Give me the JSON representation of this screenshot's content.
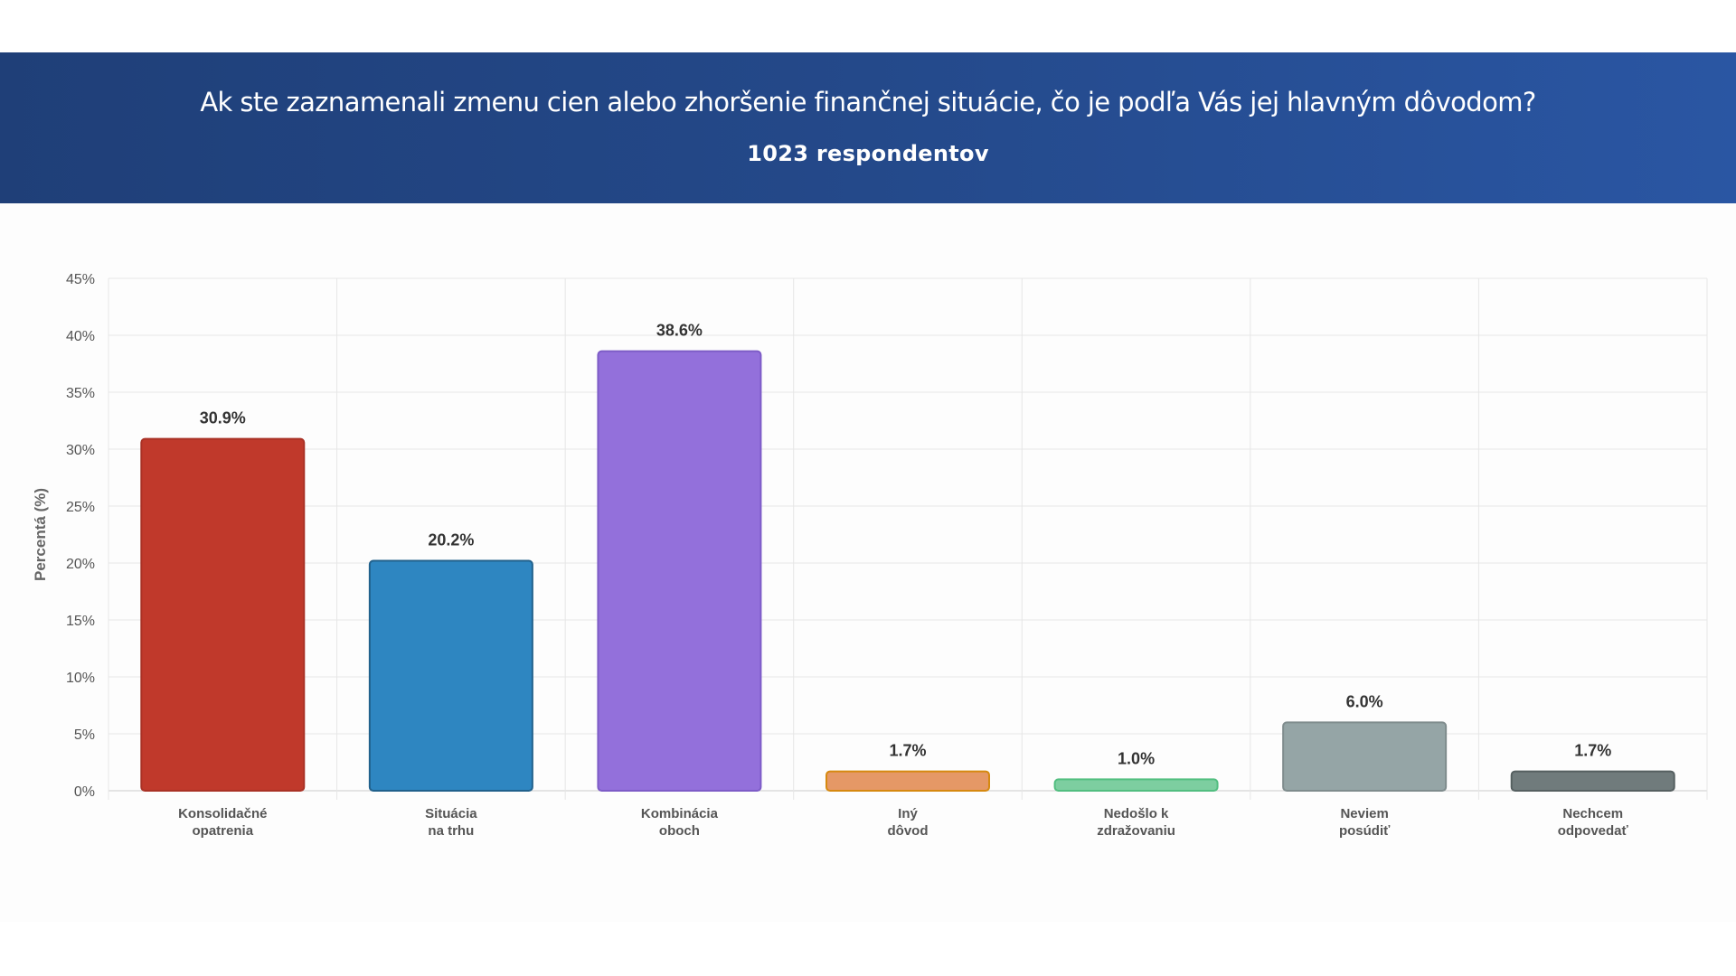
{
  "header": {
    "title": "Ak ste zaznamenali zmenu cien alebo zhoršenie finančnej situácie, čo je podľa Vás jej hlavným dôvodom?",
    "subtitle": "1023 respondentov"
  },
  "chart_data": {
    "type": "bar",
    "categories": [
      [
        "Konsolidačné",
        "opatrenia"
      ],
      [
        "Situácia",
        "na trhu"
      ],
      [
        "Kombinácia",
        "oboch"
      ],
      [
        "Iný",
        "dôvod"
      ],
      [
        "Nedošlo k",
        "zdražovaniu"
      ],
      [
        "Neviem",
        "posúdiť"
      ],
      [
        "Nechcem",
        "odpovedať"
      ]
    ],
    "values": [
      30.9,
      20.2,
      38.6,
      1.7,
      1.0,
      6.0,
      1.7
    ],
    "value_labels": [
      "30.9%",
      "20.2%",
      "38.6%",
      "1.7%",
      "1.0%",
      "6.0%",
      "1.7%"
    ],
    "colors": [
      "#c0392b",
      "#2e86c1",
      "#9370db",
      "#e59866",
      "#7dcea0",
      "#95a5a6",
      "#707b7c"
    ],
    "border_colors": [
      "#a93226",
      "#21618c",
      "#7d5cc7",
      "#d68910",
      "#52be80",
      "#7f8c8d",
      "#566061"
    ],
    "ylabel": "Percentá (%)",
    "ylim": [
      0,
      45
    ],
    "yticks": [
      0,
      5,
      10,
      15,
      20,
      25,
      30,
      35,
      40,
      45
    ],
    "ytick_labels": [
      "0%",
      "5%",
      "10%",
      "15%",
      "20%",
      "25%",
      "30%",
      "35%",
      "40%",
      "45%"
    ],
    "grid": true
  }
}
